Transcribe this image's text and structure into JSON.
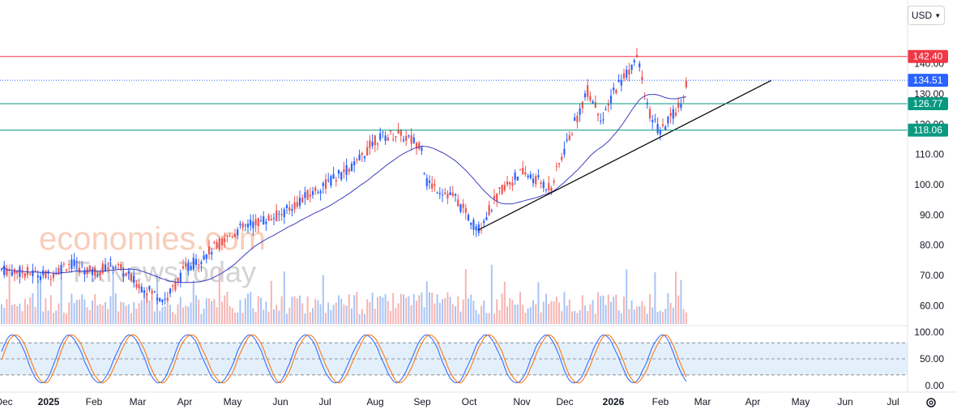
{
  "currency_selector": "USD",
  "chart_data": {
    "type": "candlestick",
    "price_axis": {
      "ticks": [
        "140.00",
        "130.00",
        "120.00",
        "110.00",
        "100.00",
        "90.00",
        "80.00",
        "70.00",
        "60.00"
      ],
      "range": [
        55,
        145
      ]
    },
    "oscillator_axis": {
      "ticks": [
        "100.00",
        "50.00",
        "0.00"
      ],
      "range": [
        0,
        100
      ],
      "bands": [
        20,
        50,
        80
      ]
    },
    "time_axis": [
      "Dec",
      "2025",
      "Feb",
      "Mar",
      "Apr",
      "May",
      "Jun",
      "Jul",
      "Aug",
      "Sep",
      "Oct",
      "Nov",
      "Dec",
      "2026",
      "Feb",
      "Mar",
      "Apr",
      "May",
      "Jun",
      "Jul"
    ],
    "levels": [
      {
        "value": 142.4,
        "label": "142.40",
        "color": "#f23645",
        "style": "solid"
      },
      {
        "value": 134.51,
        "label": "134.51",
        "color": "#2962ff",
        "style": "dotted"
      },
      {
        "value": 126.77,
        "label": "126.77",
        "color": "#089981",
        "style": "solid"
      },
      {
        "value": 118.06,
        "label": "118.06",
        "color": "#089981",
        "style": "solid"
      }
    ],
    "trendline": {
      "from": [
        "Oct 2025",
        85
      ],
      "to": [
        "Apr 2026",
        134
      ]
    },
    "price_path": [
      [
        "Dec 2024",
        72
      ],
      [
        "2025",
        70
      ],
      [
        "Jan mid",
        74
      ],
      [
        "Feb 2025",
        71
      ],
      [
        "Feb mid",
        74
      ],
      [
        "Mar 2025",
        67
      ],
      [
        "Mar mid",
        62
      ],
      [
        "Apr 2025",
        72
      ],
      [
        "Apr mid",
        76
      ],
      [
        "May 2025",
        84
      ],
      [
        "May mid",
        87
      ],
      [
        "Jun 2025",
        90
      ],
      [
        "Jun mid",
        95
      ],
      [
        "Jul 2025",
        100
      ],
      [
        "Jul mid",
        107
      ],
      [
        "Aug 2025",
        115
      ],
      [
        "Aug mid",
        117
      ],
      [
        "Sep 2025",
        113
      ],
      [
        "Sep start",
        101
      ],
      [
        "Sep mid",
        96
      ],
      [
        "Oct 2025",
        85
      ],
      [
        "Oct mid",
        99
      ],
      [
        "Nov 2025",
        104
      ],
      [
        "Nov mid",
        99
      ],
      [
        "Dec 2025",
        112
      ],
      [
        "Dec mid",
        131
      ],
      [
        "Dec end",
        121
      ],
      [
        "2026",
        131
      ],
      [
        "Jan mid",
        142
      ],
      [
        "Jan end",
        124
      ],
      [
        "Feb 2026",
        117
      ],
      [
        "Feb mid",
        127
      ],
      [
        "Feb end",
        137
      ]
    ],
    "moving_average_color": "#3f3fbf",
    "up_color": "#2962ff",
    "down_color": "#ef5350"
  },
  "watermark": {
    "line1": "economies.com",
    "line2": "FxNewsToday"
  }
}
